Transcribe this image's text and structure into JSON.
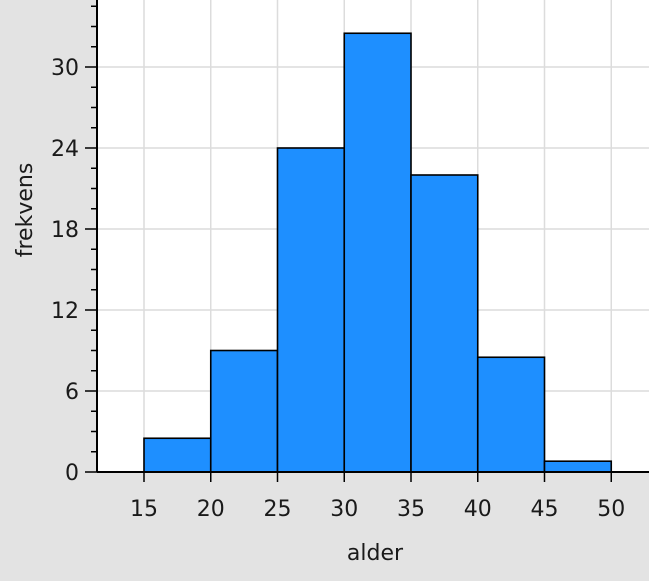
{
  "chart_data": {
    "type": "bar",
    "bins": [
      {
        "from": 15,
        "to": 20,
        "value": 2.5
      },
      {
        "from": 20,
        "to": 25,
        "value": 9.0
      },
      {
        "from": 25,
        "to": 30,
        "value": 24.0
      },
      {
        "from": 30,
        "to": 35,
        "value": 32.5
      },
      {
        "from": 35,
        "to": 40,
        "value": 22.0
      },
      {
        "from": 40,
        "to": 45,
        "value": 8.5
      },
      {
        "from": 45,
        "to": 50,
        "value": 0.8
      }
    ],
    "xlabel": "alder",
    "ylabel": "frekvens",
    "xticks": [
      "15",
      "20",
      "25",
      "30",
      "35",
      "40",
      "45",
      "50"
    ],
    "yticks": [
      "0",
      "6",
      "12",
      "18",
      "24",
      "30"
    ],
    "xlim": [
      10,
      51
    ],
    "ylim": [
      0,
      35
    ],
    "grid": true,
    "colors": {
      "bar_fill": "#1e8fff",
      "bar_stroke": "#000000",
      "plot_background": "#ffffff",
      "outer_background": "#e3e3e3",
      "grid": "#dcdcdc"
    }
  }
}
